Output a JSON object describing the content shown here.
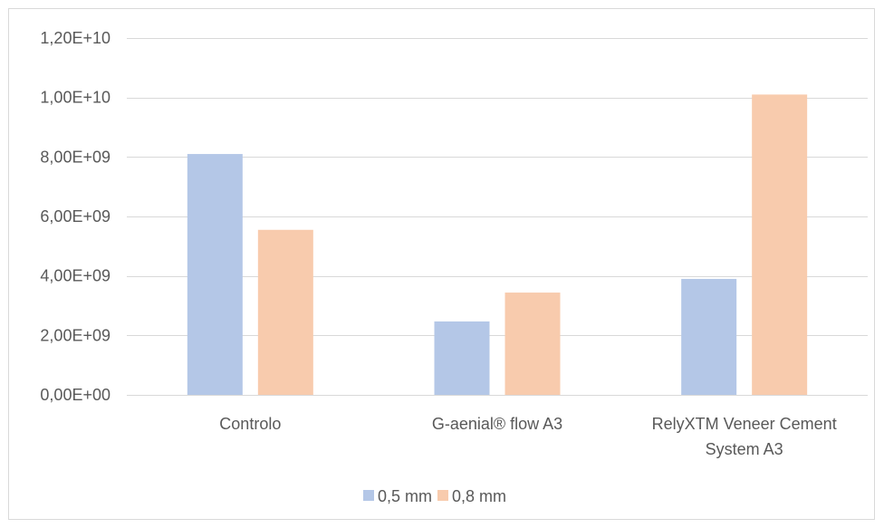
{
  "chart_data": {
    "type": "bar",
    "title": "",
    "xlabel": "",
    "ylabel": "",
    "categories": [
      [
        "Controlo"
      ],
      [
        "G-aenial® flow A3"
      ],
      [
        "RelyXTM Veneer Cement",
        "System A3"
      ]
    ],
    "series": [
      {
        "name": "0,5 mm",
        "color": "#B4C7E7",
        "values": [
          8100000000,
          2470000000,
          3900000000
        ]
      },
      {
        "name": "0,8 mm",
        "color": "#F8CBAD",
        "values": [
          5550000000,
          3440000000,
          10100000000
        ]
      }
    ],
    "ylim": [
      0,
      12000000000
    ],
    "yticks": [
      0,
      2000000000,
      4000000000,
      6000000000,
      8000000000,
      10000000000,
      12000000000
    ],
    "ytick_labels": [
      "0,00E+00",
      "2,00E+09",
      "4,00E+09",
      "6,00E+09",
      "8,00E+09",
      "1,00E+10",
      "1,20E+10"
    ],
    "grid": true,
    "legend_position": "bottom",
    "colors": {
      "gridline": "#D9D9D9",
      "axis": "#D9D9D9",
      "frame": "#D9D9D9",
      "text": "#595959"
    }
  }
}
